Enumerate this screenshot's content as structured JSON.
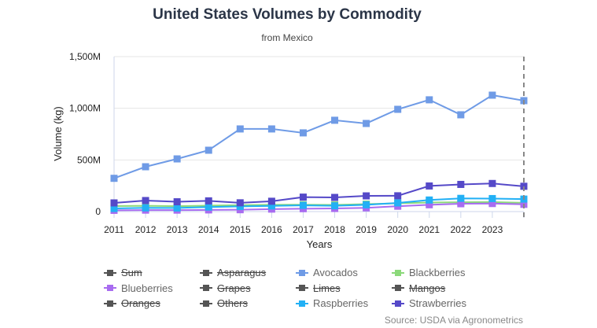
{
  "chart_data": {
    "type": "line",
    "title": "United States Volumes by Commodity",
    "subtitle": "from Mexico",
    "xlabel": "Years",
    "ylabel": "Volume (kg)",
    "ylim": [
      0,
      1500000000
    ],
    "yticks": [
      0,
      500000000,
      1000000000,
      1500000000
    ],
    "ytick_labels": [
      "0",
      "500M",
      "1,000M",
      "1,500M"
    ],
    "x": [
      2011,
      2012,
      2013,
      2014,
      2015,
      2016,
      2017,
      2018,
      2019,
      2020,
      2021,
      2022,
      2023,
      2024
    ],
    "xtick_labels": [
      "2011",
      "2012",
      "2013",
      "2014",
      "2015",
      "2016",
      "2017",
      "2018",
      "2019",
      "2020",
      "2021",
      "2022",
      "2023"
    ],
    "grid": true,
    "legend_position": "bottom",
    "series": [
      {
        "name": "Avocados",
        "color": "#6f9be6",
        "visible": true,
        "values": [
          322,
          434,
          510,
          594,
          800,
          800,
          762,
          884,
          853,
          990,
          1082,
          937,
          1127,
          1074
        ]
      },
      {
        "name": "Blackberries",
        "color": "#8cd97a",
        "visible": true,
        "values": [
          53,
          56,
          52,
          58,
          62,
          66,
          67,
          65,
          72,
          80,
          88,
          90,
          92,
          85
        ]
      },
      {
        "name": "Blueberries",
        "color": "#a86cf0",
        "visible": true,
        "values": [
          12,
          14,
          14,
          16,
          18,
          24,
          28,
          30,
          36,
          52,
          66,
          76,
          78,
          70
        ]
      },
      {
        "name": "Raspberries",
        "color": "#22b0f5",
        "visible": true,
        "values": [
          30,
          36,
          35,
          44,
          50,
          55,
          60,
          56,
          66,
          84,
          112,
          128,
          126,
          121
        ]
      },
      {
        "name": "Strawberries",
        "color": "#5549c8",
        "visible": true,
        "values": [
          84,
          107,
          95,
          104,
          85,
          100,
          140,
          137,
          152,
          153,
          248,
          263,
          272,
          245
        ]
      }
    ],
    "value_unit": "millions of kg",
    "annotations": [
      {
        "type": "dashed-vertical-line",
        "x": 2024
      }
    ]
  },
  "legend": [
    {
      "name": "Sum",
      "color": "#555555",
      "visible": false
    },
    {
      "name": "Asparagus",
      "color": "#555555",
      "visible": false
    },
    {
      "name": "Avocados",
      "color": "#6f9be6",
      "visible": true
    },
    {
      "name": "Blackberries",
      "color": "#8cd97a",
      "visible": true
    },
    {
      "name": "Blueberries",
      "color": "#a86cf0",
      "visible": true
    },
    {
      "name": "Grapes",
      "color": "#555555",
      "visible": false
    },
    {
      "name": "Limes",
      "color": "#555555",
      "visible": false
    },
    {
      "name": "Mangos",
      "color": "#555555",
      "visible": false
    },
    {
      "name": "Oranges",
      "color": "#555555",
      "visible": false
    },
    {
      "name": "Others",
      "color": "#555555",
      "visible": false
    },
    {
      "name": "Raspberries",
      "color": "#22b0f5",
      "visible": true
    },
    {
      "name": "Strawberries",
      "color": "#5549c8",
      "visible": true
    }
  ],
  "source": "Source: USDA via Agronometrics"
}
